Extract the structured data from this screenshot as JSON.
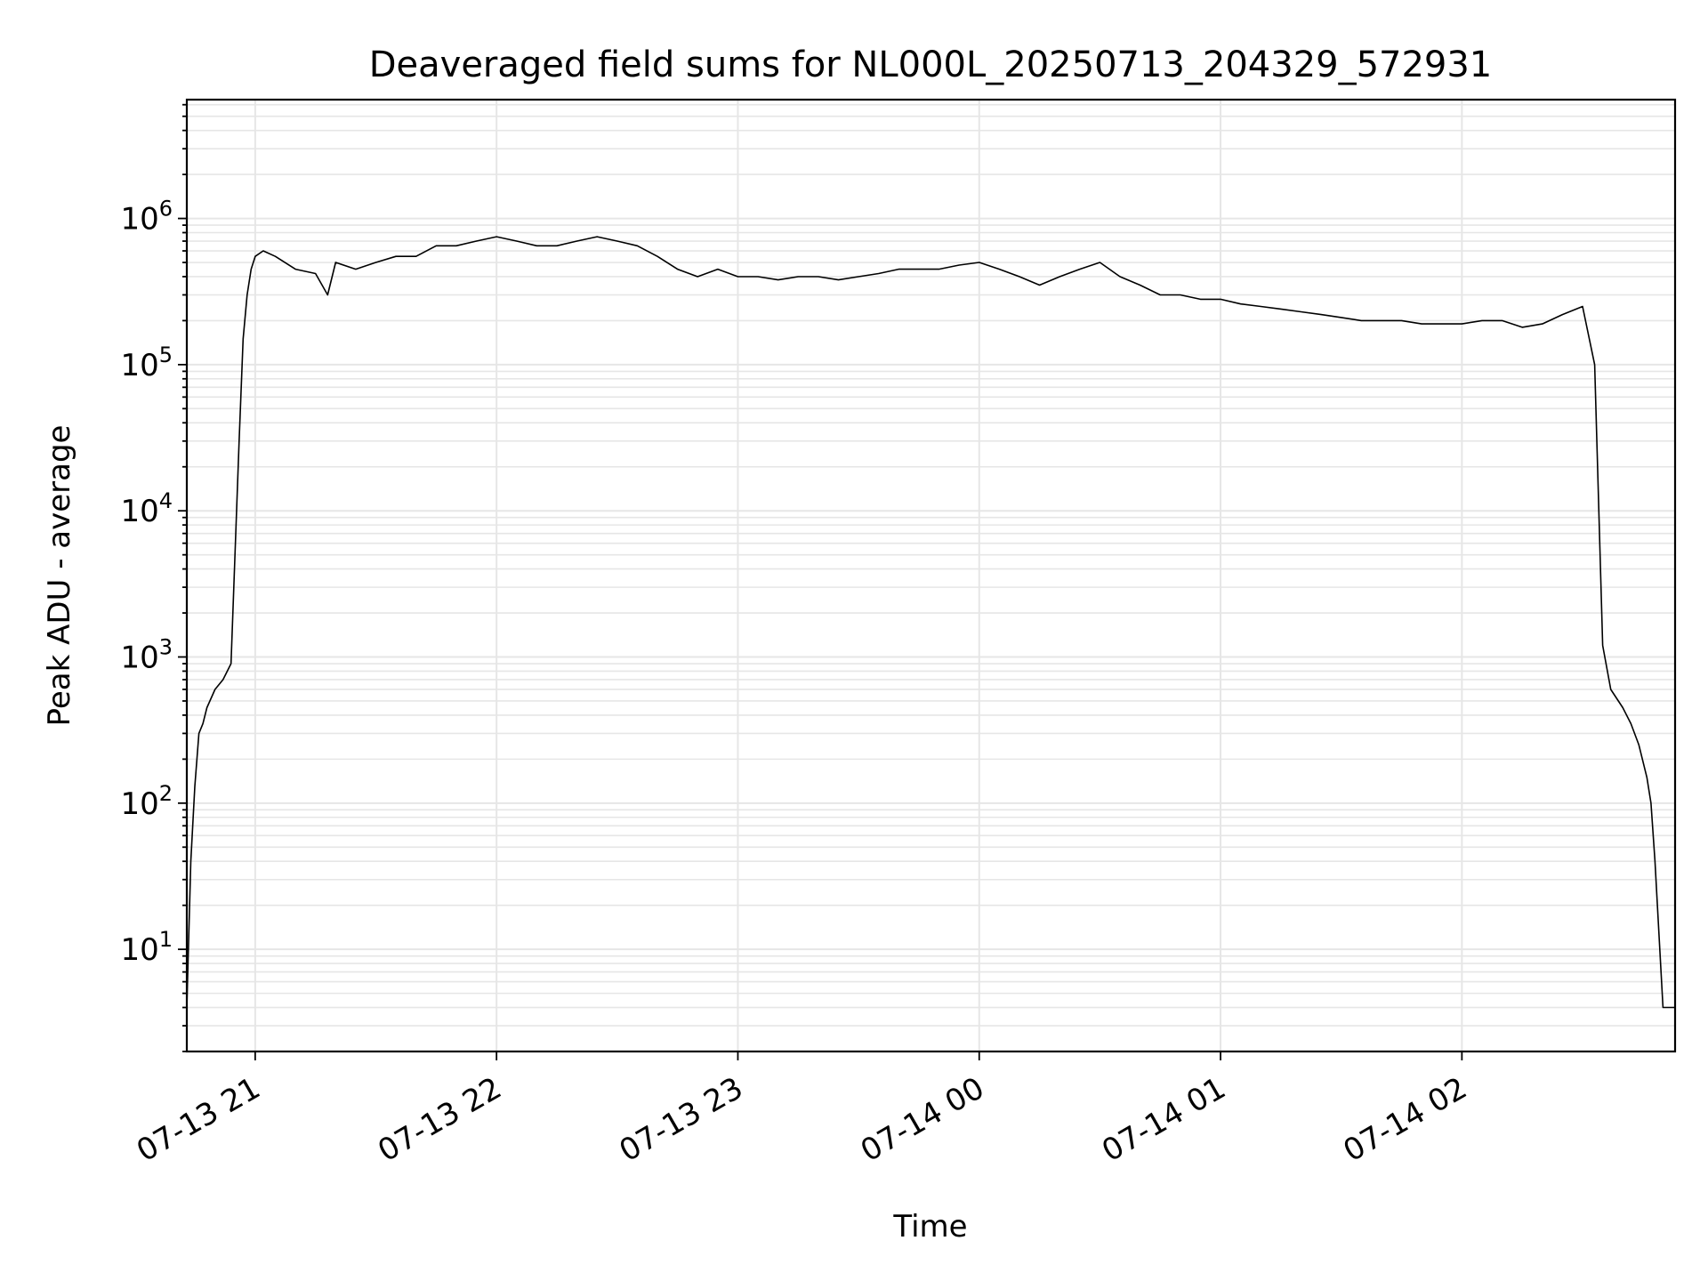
{
  "chart_data": {
    "type": "line",
    "title": "Deaveraged field sums for NL000L_20250713_204329_572931",
    "xlabel": "Time",
    "ylabel": "Peak ADU - average",
    "yscale": "log",
    "grid": true,
    "xlim": [
      "07-13 20:43",
      "07-14 02:53"
    ],
    "ylim": [
      2,
      6500000
    ],
    "x_ticks": [
      "07-13 21",
      "07-13 22",
      "07-13 23",
      "07-14 00",
      "07-14 01",
      "07-14 02"
    ],
    "y_ticks": [
      {
        "base": "10",
        "exp": "1",
        "value": 10
      },
      {
        "base": "10",
        "exp": "2",
        "value": 100
      },
      {
        "base": "10",
        "exp": "3",
        "value": 1000
      },
      {
        "base": "10",
        "exp": "4",
        "value": 10000
      },
      {
        "base": "10",
        "exp": "5",
        "value": 100000
      },
      {
        "base": "10",
        "exp": "6",
        "value": 1000000
      }
    ],
    "line_color": "#000000",
    "series": [
      {
        "name": "",
        "x": [
          "20:43",
          "20:44",
          "20:45",
          "20:46",
          "20:47",
          "20:48",
          "20:50",
          "20:52",
          "20:54",
          "20:56",
          "20:57",
          "20:58",
          "20:59",
          "21:00",
          "21:02",
          "21:05",
          "21:10",
          "21:15",
          "21:18",
          "21:20",
          "21:25",
          "21:30",
          "21:35",
          "21:40",
          "21:45",
          "21:50",
          "21:55",
          "22:00",
          "22:05",
          "22:10",
          "22:15",
          "22:20",
          "22:25",
          "22:30",
          "22:35",
          "22:40",
          "22:45",
          "22:50",
          "22:55",
          "23:00",
          "23:05",
          "23:10",
          "23:15",
          "23:20",
          "23:25",
          "23:30",
          "23:35",
          "23:40",
          "23:45",
          "23:50",
          "23:55",
          "00:00",
          "00:05",
          "00:10",
          "00:15",
          "00:20",
          "00:25",
          "00:30",
          "00:35",
          "00:40",
          "00:45",
          "00:50",
          "00:55",
          "01:00",
          "01:05",
          "01:10",
          "01:15",
          "01:20",
          "01:25",
          "01:30",
          "01:35",
          "01:40",
          "01:45",
          "01:50",
          "01:55",
          "02:00",
          "02:05",
          "02:10",
          "02:15",
          "02:20",
          "02:25",
          "02:30",
          "02:33",
          "02:35",
          "02:37",
          "02:40",
          "02:42",
          "02:44",
          "02:46",
          "02:47",
          "02:48",
          "02:50",
          "02:53"
        ],
        "y": [
          4,
          40,
          130,
          300,
          350,
          450,
          600,
          700,
          900,
          30000,
          150000,
          300000,
          450000,
          550000,
          600000,
          550000,
          450000,
          420000,
          300000,
          500000,
          450000,
          500000,
          550000,
          550000,
          650000,
          650000,
          700000,
          750000,
          700000,
          650000,
          650000,
          700000,
          750000,
          700000,
          650000,
          550000,
          450000,
          400000,
          450000,
          400000,
          400000,
          380000,
          400000,
          400000,
          380000,
          400000,
          420000,
          450000,
          450000,
          450000,
          480000,
          500000,
          450000,
          400000,
          350000,
          400000,
          450000,
          500000,
          400000,
          350000,
          300000,
          300000,
          280000,
          280000,
          260000,
          250000,
          240000,
          230000,
          220000,
          210000,
          200000,
          200000,
          200000,
          190000,
          190000,
          190000,
          200000,
          200000,
          180000,
          190000,
          220000,
          250000,
          100000,
          1200,
          600,
          450,
          350,
          250,
          150,
          100,
          40,
          4,
          4
        ]
      }
    ]
  }
}
